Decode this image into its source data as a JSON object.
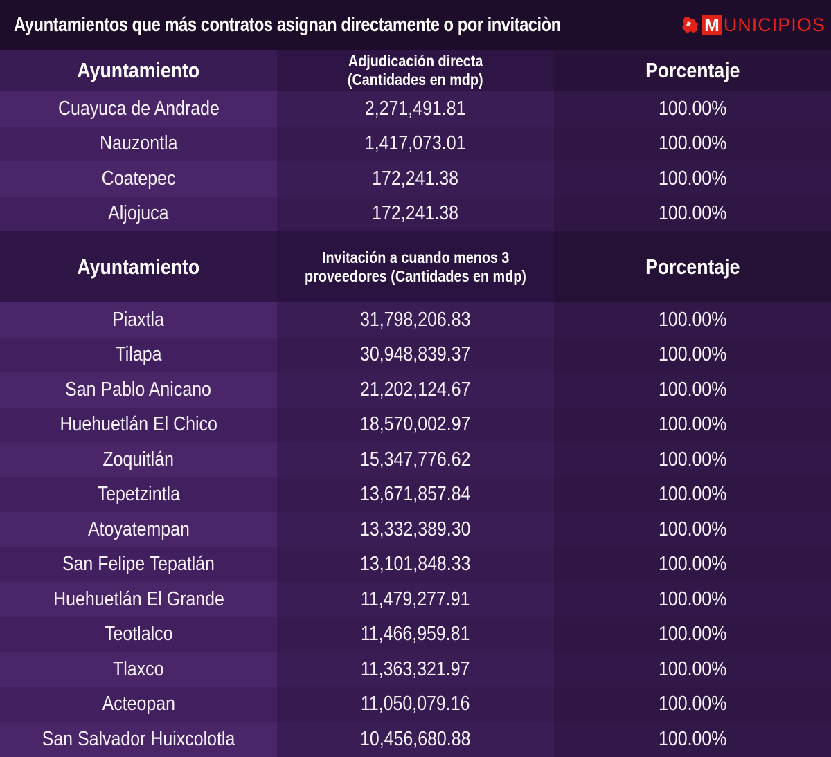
{
  "title": "Ayuntamientos que más contratos asignan directamente o por invitaciòn",
  "logo": {
    "m": "M",
    "text": "UNICIPIOS",
    "brand_color": "#e2231a"
  },
  "section1": {
    "headers": [
      "Ayuntamiento",
      "Adjudicación directa",
      "(Cantidades en mdp)",
      "Porcentaje"
    ],
    "rows": [
      [
        "Cuayuca de Andrade",
        "2,271,491.81",
        "100.00%"
      ],
      [
        "Nauzontla",
        "1,417,073.01",
        "100.00%"
      ],
      [
        "Coatepec",
        "172,241.38",
        "100.00%"
      ],
      [
        "Aljojuca",
        "172,241.38",
        "100.00%"
      ]
    ]
  },
  "section2": {
    "headers": [
      "Ayuntamiento",
      "Invitación a cuando menos 3",
      "proveedores (Cantidades en mdp)",
      "Porcentaje"
    ],
    "rows": [
      [
        "Piaxtla",
        "31,798,206.83",
        "100.00%"
      ],
      [
        "Tilapa",
        "30,948,839.37",
        "100.00%"
      ],
      [
        "San Pablo Anicano",
        "21,202,124.67",
        "100.00%"
      ],
      [
        "Huehuetlán El Chico",
        "18,570,002.97",
        "100.00%"
      ],
      [
        "Zoquitlán",
        "15,347,776.62",
        "100.00%"
      ],
      [
        "Tepetzintla",
        "13,671,857.84",
        "100.00%"
      ],
      [
        "Atoyatempan",
        "13,332,389.30",
        "100.00%"
      ],
      [
        "San Felipe Tepatlán",
        "13,101,848.33",
        "100.00%"
      ],
      [
        "Huehuetlán El Grande",
        "11,479,277.91",
        "100.00%"
      ],
      [
        "Teotlalco",
        "11,466,959.81",
        "100.00%"
      ],
      [
        "Tlaxco",
        "11,363,321.97",
        "100.00%"
      ],
      [
        "Acteopan",
        "11,050,079.16",
        "100.00%"
      ],
      [
        "San Salvador Huixcolotla",
        "10,456,680.88",
        "100.00%"
      ]
    ]
  }
}
